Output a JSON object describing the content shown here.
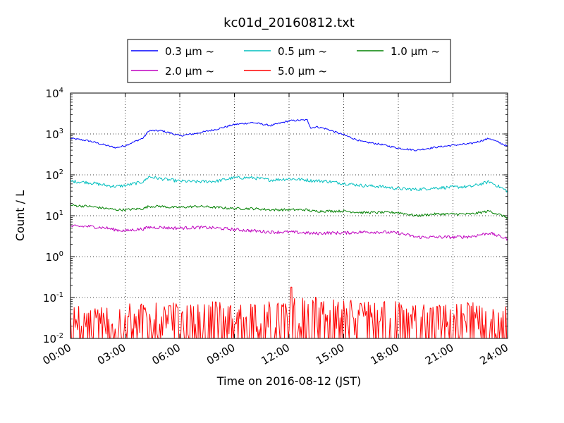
{
  "chart_data": {
    "type": "line",
    "title": "kc01d_20160812.txt",
    "xlabel": "Time on 2016-08-12 (JST)",
    "ylabel": "Count / L",
    "yscale": "log",
    "xlim": [
      "00:00",
      "24:00"
    ],
    "ylim": [
      0.01,
      10000
    ],
    "grid": true,
    "legend_position": "top-center",
    "x_ticks": [
      "00:00",
      "03:00",
      "06:00",
      "09:00",
      "12:00",
      "15:00",
      "18:00",
      "21:00",
      "24:00"
    ],
    "y_ticks": [
      {
        "base": "10",
        "exp": "-2",
        "value": 0.01
      },
      {
        "base": "10",
        "exp": "-1",
        "value": 0.1
      },
      {
        "base": "10",
        "exp": "0",
        "value": 1
      },
      {
        "base": "10",
        "exp": "1",
        "value": 10
      },
      {
        "base": "10",
        "exp": "2",
        "value": 100
      },
      {
        "base": "10",
        "exp": "3",
        "value": 1000
      },
      {
        "base": "10",
        "exp": "4",
        "value": 10000
      }
    ],
    "x_hours": [
      0,
      1,
      2,
      2.5,
      3,
      4,
      4.3,
      5,
      5.5,
      6,
      7,
      8,
      9,
      10,
      11,
      12,
      13,
      13.2,
      13.5,
      14,
      15,
      16,
      17,
      18,
      19,
      20,
      21,
      22,
      23,
      24
    ],
    "series": [
      {
        "name": "0.3 μm ~",
        "color": "#0000ff",
        "values": [
          780,
          680,
          520,
          460,
          520,
          800,
          1200,
          1200,
          1050,
          900,
          1050,
          1300,
          1700,
          1900,
          1600,
          2100,
          2200,
          1400,
          1500,
          1350,
          950,
          650,
          560,
          450,
          400,
          470,
          530,
          580,
          780,
          500
        ]
      },
      {
        "name": "0.5 μm ~",
        "color": "#00bfbf",
        "values": [
          70,
          65,
          55,
          52,
          55,
          68,
          90,
          80,
          75,
          70,
          68,
          70,
          85,
          85,
          75,
          80,
          75,
          72,
          72,
          70,
          62,
          55,
          52,
          46,
          44,
          48,
          50,
          52,
          68,
          40
        ]
      },
      {
        "name": "1.0 μm ~",
        "color": "#008000",
        "values": [
          18,
          17,
          15,
          14,
          14,
          15,
          17,
          17,
          16,
          16,
          17,
          16,
          15,
          15,
          14,
          14,
          14,
          13,
          13,
          13,
          13,
          12,
          12,
          12,
          10,
          11,
          11,
          11,
          13,
          9
        ]
      },
      {
        "name": "2.0 μm ~",
        "color": "#bf00bf",
        "values": [
          5.5,
          5.5,
          5.0,
          4.5,
          4.3,
          4.8,
          5.2,
          5.2,
          5.0,
          5.0,
          5.2,
          5.0,
          4.6,
          4.3,
          4.0,
          4.0,
          3.8,
          3.7,
          3.7,
          3.8,
          3.8,
          4.0,
          4.0,
          3.8,
          3.0,
          3.0,
          3.0,
          3.1,
          3.8,
          2.7
        ]
      },
      {
        "name": "5.0 μm ~",
        "color": "#ff0000",
        "values": [
          0.04,
          0.03,
          0.04,
          0.03,
          0.04,
          0.05,
          0.05,
          0.04,
          0.05,
          0.04,
          0.04,
          0.05,
          0.04,
          0.05,
          0.05,
          0.06,
          0.06,
          0.05,
          0.07,
          0.05,
          0.06,
          0.05,
          0.06,
          0.05,
          0.04,
          0.04,
          0.04,
          0.05,
          0.04,
          0.04
        ]
      }
    ]
  }
}
